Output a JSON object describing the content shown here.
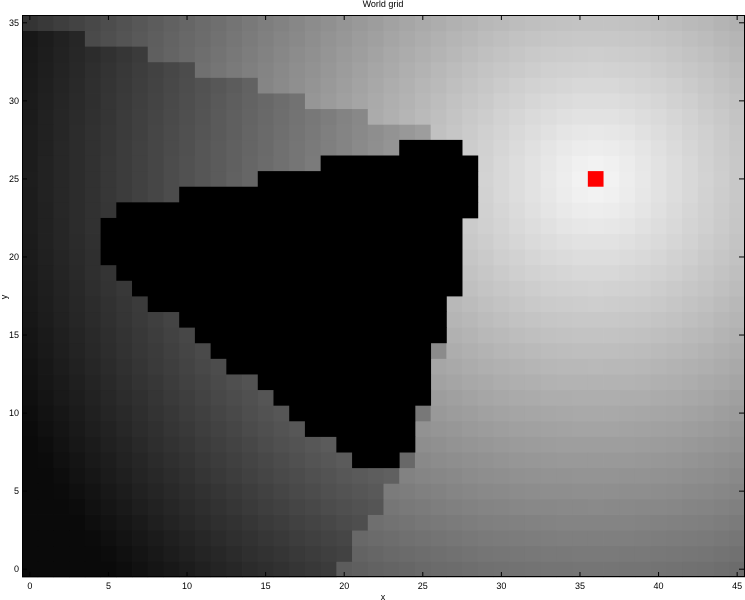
{
  "chart_data": {
    "type": "heatmap",
    "title": "World grid",
    "xlabel": "x",
    "ylabel": "y",
    "xlim": [
      -0.5,
      45.5
    ],
    "ylim": [
      -0.5,
      35.5
    ],
    "grid": false,
    "colormap": "gray",
    "x_ticks": [
      0,
      5,
      10,
      15,
      20,
      25,
      30,
      35,
      40,
      45
    ],
    "y_ticks": [
      0,
      5,
      10,
      15,
      20,
      25,
      30,
      35
    ],
    "field": {
      "description_units": "intensity 0 (black) to 1 (white)",
      "peak": [
        36,
        25
      ],
      "shadow_source": [
        36,
        25
      ]
    },
    "obstacle": {
      "color": "#000000",
      "rows": [
        {
          "y": 7,
          "x_start": 21,
          "x_end": 23
        },
        {
          "y": 8,
          "x_start": 20,
          "x_end": 24
        },
        {
          "y": 9,
          "x_start": 18,
          "x_end": 24
        },
        {
          "y": 10,
          "x_start": 17,
          "x_end": 24
        },
        {
          "y": 11,
          "x_start": 16,
          "x_end": 25
        },
        {
          "y": 12,
          "x_start": 15,
          "x_end": 25
        },
        {
          "y": 13,
          "x_start": 13,
          "x_end": 25
        },
        {
          "y": 14,
          "x_start": 12,
          "x_end": 25
        },
        {
          "y": 15,
          "x_start": 11,
          "x_end": 26
        },
        {
          "y": 16,
          "x_start": 10,
          "x_end": 26
        },
        {
          "y": 17,
          "x_start": 8,
          "x_end": 26
        },
        {
          "y": 18,
          "x_start": 7,
          "x_end": 27
        },
        {
          "y": 19,
          "x_start": 6,
          "x_end": 27
        },
        {
          "y": 20,
          "x_start": 5,
          "x_end": 27
        },
        {
          "y": 21,
          "x_start": 5,
          "x_end": 27
        },
        {
          "y": 22,
          "x_start": 5,
          "x_end": 27
        },
        {
          "y": 23,
          "x_start": 6,
          "x_end": 28
        },
        {
          "y": 24,
          "x_start": 10,
          "x_end": 28
        },
        {
          "y": 25,
          "x_start": 15,
          "x_end": 28
        },
        {
          "y": 26,
          "x_start": 19,
          "x_end": 28
        },
        {
          "y": 27,
          "x_start": 24,
          "x_end": 27
        }
      ]
    },
    "marker": {
      "x": 36,
      "y": 25,
      "color": "#ff0000"
    }
  }
}
